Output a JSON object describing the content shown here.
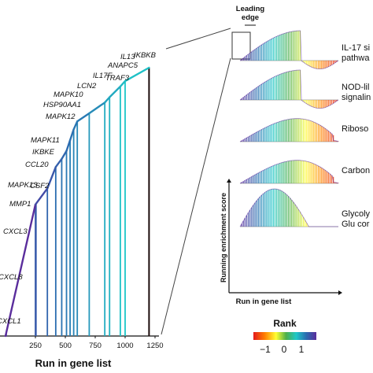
{
  "chart_data": [
    {
      "type": "line",
      "title": "",
      "xlabel": "Run in gene list",
      "ylabel": "",
      "x_ticks": [
        "250",
        "500",
        "750",
        "1000",
        "1250"
      ],
      "xlim": [
        0,
        1250
      ],
      "genes": [
        {
          "name": "CXCL1",
          "x": 2
        },
        {
          "name": "CXCL8",
          "x": 4
        },
        {
          "name": "CXCL3",
          "x": 6
        },
        {
          "name": "MMP1",
          "x": 250
        },
        {
          "name": "MAPK13",
          "x": 255
        },
        {
          "name": "CSF2",
          "x": 350
        },
        {
          "name": "CCL20",
          "x": 420
        },
        {
          "name": "IKBKE",
          "x": 470
        },
        {
          "name": "MAPK11",
          "x": 510
        },
        {
          "name": "MAPK12",
          "x": 540
        },
        {
          "name": "HSP90AA1",
          "x": 570
        },
        {
          "name": "MAPK10",
          "x": 600
        },
        {
          "name": "LCN2",
          "x": 700
        },
        {
          "name": "IL17F",
          "x": 830
        },
        {
          "name": "TRAF3",
          "x": 870
        },
        {
          "name": "IL13",
          "x": 960
        },
        {
          "name": "ANAPC5",
          "x": 1000
        },
        {
          "name": "IKBKB",
          "x": 1200
        }
      ],
      "series": [
        {
          "values": [
            {
              "x": 0,
              "y": 0.0
            },
            {
              "x": 250,
              "y": 0.49
            },
            {
              "x": 350,
              "y": 0.55
            },
            {
              "x": 420,
              "y": 0.63
            },
            {
              "x": 470,
              "y": 0.66
            },
            {
              "x": 510,
              "y": 0.69
            },
            {
              "x": 540,
              "y": 0.73
            },
            {
              "x": 570,
              "y": 0.77
            },
            {
              "x": 600,
              "y": 0.8
            },
            {
              "x": 700,
              "y": 0.83
            },
            {
              "x": 830,
              "y": 0.87
            },
            {
              "x": 870,
              "y": 0.89
            },
            {
              "x": 960,
              "y": 0.93
            },
            {
              "x": 1000,
              "y": 0.95
            },
            {
              "x": 1200,
              "y": 1.0
            }
          ]
        }
      ]
    },
    {
      "type": "area",
      "title": "",
      "header": {
        "line1": "Leading",
        "line2": "edge"
      },
      "xlabel": "Run in gene list",
      "ylabel": "Running enrichment score",
      "pathways": [
        {
          "label_lines": [
            "IL-17 si",
            "pathwa"
          ],
          "shape": "peak-dip"
        },
        {
          "label_lines": [
            "NOD-lil",
            "signalin"
          ],
          "shape": "peak-dip"
        },
        {
          "label_lines": [
            "Riboso"
          ],
          "shape": "broad"
        },
        {
          "label_lines": [
            "Carbon"
          ],
          "shape": "broad"
        },
        {
          "label_lines": [
            "Glycoly",
            "Glu cor"
          ],
          "shape": "early"
        }
      ]
    }
  ],
  "legend": {
    "title": "Rank",
    "ticks": [
      "−1",
      "0",
      "1"
    ],
    "colors": [
      "#e41a1c",
      "#ff7f00",
      "#ffff33",
      "#4daf4a",
      "#1ec8c8",
      "#2b6cb0",
      "#5a2d9c"
    ]
  }
}
